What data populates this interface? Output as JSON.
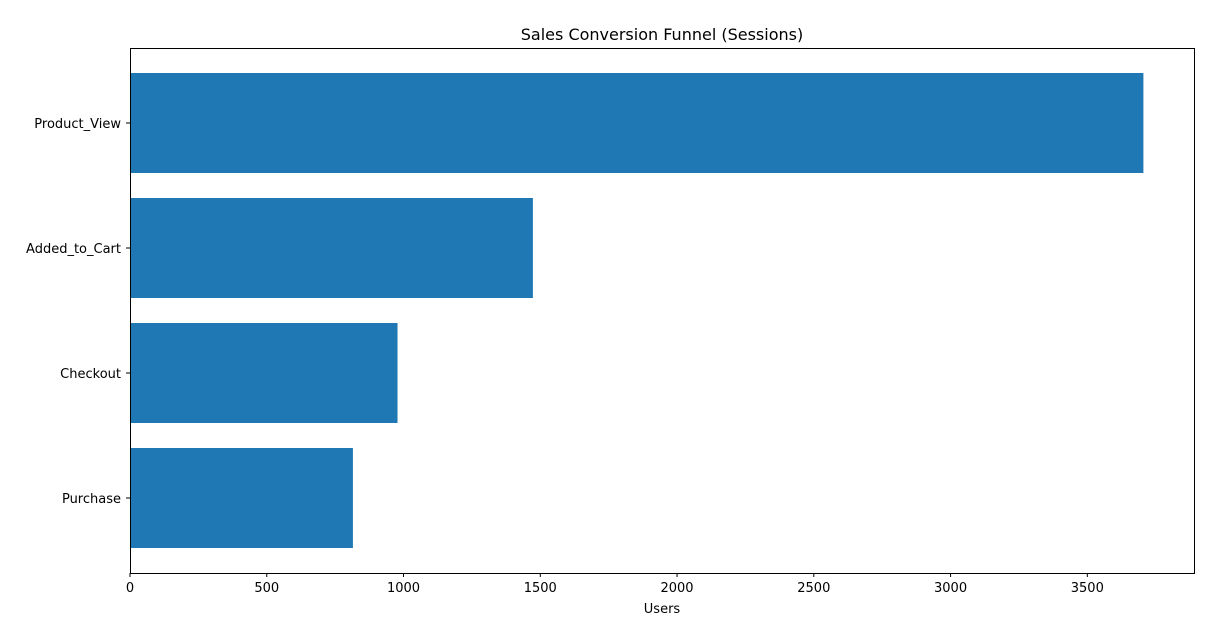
{
  "chart_data": {
    "type": "bar",
    "orientation": "horizontal",
    "title": "Sales Conversion Funnel (Sessions)",
    "xlabel": "Users",
    "ylabel": "",
    "categories": [
      "Product_View",
      "Added_to_Cart",
      "Checkout",
      "Purchase"
    ],
    "values": [
      3705,
      1473,
      978,
      815
    ],
    "xlim": [
      0,
      3890
    ],
    "xticks": [
      0,
      500,
      1000,
      1500,
      2000,
      2500,
      3000,
      3500
    ],
    "bar_color": "#1f77b4",
    "grid": false,
    "legend": "none"
  }
}
